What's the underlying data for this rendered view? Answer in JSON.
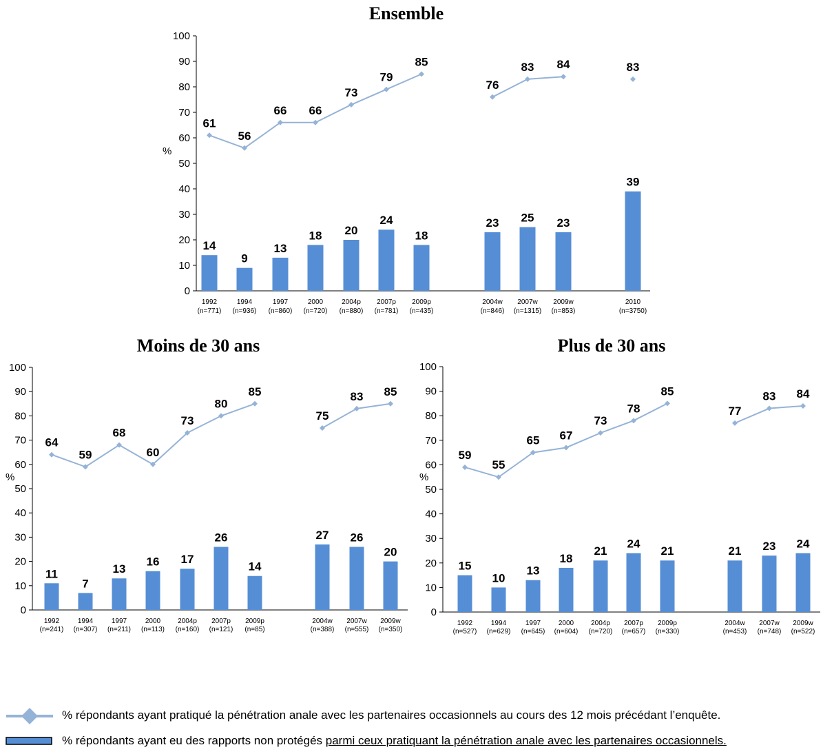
{
  "chart_data": [
    {
      "type": "bar",
      "title": "Ensemble",
      "ylabel": "%",
      "ylim": [
        0,
        100
      ],
      "yticks": [
        0,
        10,
        20,
        30,
        40,
        50,
        60,
        70,
        80,
        90,
        100
      ],
      "categories": [
        "1992",
        "1994",
        "1997",
        "2000",
        "2004p",
        "2007p",
        "2009p",
        "2004w",
        "2007w",
        "2009w",
        "2010"
      ],
      "ns": [
        "(n=771)",
        "(n=936)",
        "(n=860)",
        "(n=720)",
        "(n=880)",
        "(n=781)",
        "(n=435)",
        "(n=846)",
        "(n=1315)",
        "(n=853)",
        "(n=3750)"
      ],
      "series": [
        {
          "kind": "line",
          "values": [
            61,
            56,
            66,
            66,
            73,
            79,
            85,
            76,
            83,
            84,
            83
          ],
          "segments": [
            [
              0,
              6
            ],
            [
              7,
              9
            ],
            [
              10,
              10
            ]
          ]
        },
        {
          "kind": "bar",
          "values": [
            14,
            9,
            13,
            18,
            20,
            24,
            18,
            23,
            25,
            23,
            39
          ]
        }
      ]
    },
    {
      "type": "bar",
      "title": "Moins de 30 ans",
      "ylabel": "%",
      "ylim": [
        0,
        100
      ],
      "yticks": [
        0,
        10,
        20,
        30,
        40,
        50,
        60,
        70,
        80,
        90,
        100
      ],
      "categories": [
        "1992",
        "1994",
        "1997",
        "2000",
        "2004p",
        "2007p",
        "2009p",
        "2004w",
        "2007w",
        "2009w"
      ],
      "ns": [
        "(n=241)",
        "(n=307)",
        "(n=211)",
        "(n=113)",
        "(n=160)",
        "(n=121)",
        "(n=85)",
        "(n=388)",
        "(n=555)",
        "(n=350)"
      ],
      "series": [
        {
          "kind": "line",
          "values": [
            64,
            59,
            68,
            60,
            73,
            80,
            85,
            75,
            83,
            85
          ],
          "segments": [
            [
              0,
              6
            ],
            [
              7,
              9
            ]
          ]
        },
        {
          "kind": "bar",
          "values": [
            11,
            7,
            13,
            16,
            17,
            26,
            14,
            27,
            26,
            20
          ]
        }
      ]
    },
    {
      "type": "bar",
      "title": "Plus de 30 ans",
      "ylabel": "%",
      "ylim": [
        0,
        100
      ],
      "yticks": [
        0,
        10,
        20,
        30,
        40,
        50,
        60,
        70,
        80,
        90,
        100
      ],
      "categories": [
        "1992",
        "1994",
        "1997",
        "2000",
        "2004p",
        "2007p",
        "2009p",
        "2004w",
        "2007w",
        "2009w"
      ],
      "ns": [
        "(n=527)",
        "(n=629)",
        "(n=645)",
        "(n=604)",
        "(n=720)",
        "(n=657)",
        "(n=330)",
        "(n=453)",
        "(n=748)",
        "(n=522)"
      ],
      "series": [
        {
          "kind": "line",
          "values": [
            59,
            55,
            65,
            67,
            73,
            78,
            85,
            77,
            83,
            84
          ],
          "segments": [
            [
              0,
              6
            ],
            [
              7,
              9
            ]
          ]
        },
        {
          "kind": "bar",
          "values": [
            15,
            10,
            13,
            18,
            21,
            24,
            21,
            21,
            23,
            24
          ]
        }
      ]
    }
  ],
  "colors": {
    "line": "#95B3D7",
    "bar": "#558ED5",
    "axis": "#000000"
  },
  "legend": {
    "line_text": "% répondants ayant pratiqué la pénétration anale avec les partenaires occasionnels au cours des 12 mois précédant l’enquête.",
    "bar_text_plain": "% répondants ayant eu des rapports non protégés ",
    "bar_text_underlined": "parmi ceux pratiquant la pénétration anale avec les partenaires occasionnels."
  }
}
